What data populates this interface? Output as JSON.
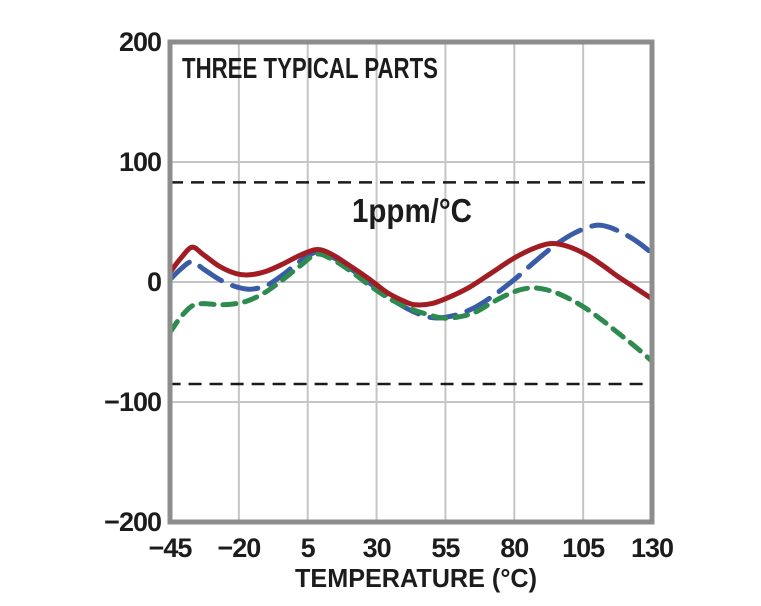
{
  "chart_data": {
    "type": "line",
    "title": "THREE TYPICAL PARTS",
    "xlabel": "TEMPERATURE (°C)",
    "ylabel": "",
    "xlim": [
      -45,
      130
    ],
    "ylim": [
      -200,
      200
    ],
    "grid": true,
    "legend": "none",
    "x_ticks": [
      -45,
      -20,
      5,
      30,
      55,
      80,
      105,
      130
    ],
    "x_tick_labels": [
      "−45",
      "−20",
      "5",
      "30",
      "55",
      "80",
      "105",
      "130"
    ],
    "y_ticks": [
      200,
      100,
      0,
      -100,
      -200
    ],
    "y_tick_labels": [
      "200",
      "100",
      "0",
      "−100",
      "−200"
    ],
    "x_gridlines": [
      -20,
      5,
      30,
      55,
      80,
      105
    ],
    "y_gridlines": [
      100,
      0,
      -100
    ],
    "annotation_box": {
      "label": "1ppm/°C",
      "x_range": [
        -45,
        130
      ],
      "y_top": 83,
      "y_bottom": -85,
      "style": "black-dashed"
    },
    "series": [
      {
        "name": "typical-part-blue",
        "color": "#3a5ba8",
        "style": "long-dash",
        "points": [
          [
            -45,
            2
          ],
          [
            -41,
            11
          ],
          [
            -37,
            17
          ],
          [
            -33,
            11
          ],
          [
            -27,
            2
          ],
          [
            -21,
            -4
          ],
          [
            -16,
            -6
          ],
          [
            -10,
            -3
          ],
          [
            -4,
            6
          ],
          [
            2,
            17
          ],
          [
            8,
            25
          ],
          [
            13,
            22
          ],
          [
            20,
            12
          ],
          [
            27,
            0
          ],
          [
            34,
            -12
          ],
          [
            41,
            -22
          ],
          [
            47,
            -28
          ],
          [
            52,
            -30
          ],
          [
            58,
            -28
          ],
          [
            65,
            -22
          ],
          [
            72,
            -12
          ],
          [
            80,
            2
          ],
          [
            88,
            18
          ],
          [
            95,
            31
          ],
          [
            102,
            41
          ],
          [
            109,
            47
          ],
          [
            114,
            46
          ],
          [
            120,
            40
          ],
          [
            125,
            33
          ],
          [
            130,
            24
          ]
        ]
      },
      {
        "name": "typical-part-green",
        "color": "#2e8b4f",
        "style": "short-dash",
        "points": [
          [
            -45,
            -42
          ],
          [
            -41,
            -29
          ],
          [
            -37,
            -20
          ],
          [
            -33,
            -18
          ],
          [
            -27,
            -19
          ],
          [
            -21,
            -18
          ],
          [
            -16,
            -15
          ],
          [
            -10,
            -8
          ],
          [
            -4,
            2
          ],
          [
            2,
            13
          ],
          [
            8,
            23
          ],
          [
            13,
            20
          ],
          [
            20,
            10
          ],
          [
            27,
            -2
          ],
          [
            34,
            -13
          ],
          [
            41,
            -21
          ],
          [
            47,
            -26
          ],
          [
            54,
            -30
          ],
          [
            60,
            -29
          ],
          [
            66,
            -25
          ],
          [
            72,
            -17
          ],
          [
            78,
            -10
          ],
          [
            83,
            -6
          ],
          [
            88,
            -5
          ],
          [
            94,
            -8
          ],
          [
            100,
            -14
          ],
          [
            106,
            -22
          ],
          [
            112,
            -32
          ],
          [
            118,
            -43
          ],
          [
            124,
            -54
          ],
          [
            130,
            -66
          ]
        ]
      },
      {
        "name": "typical-part-red",
        "color": "#a11d23",
        "style": "solid",
        "points": [
          [
            -45,
            8
          ],
          [
            -41,
            20
          ],
          [
            -37,
            29
          ],
          [
            -33,
            23
          ],
          [
            -27,
            13
          ],
          [
            -21,
            7
          ],
          [
            -16,
            6
          ],
          [
            -10,
            9
          ],
          [
            -4,
            15
          ],
          [
            2,
            22
          ],
          [
            8,
            27
          ],
          [
            13,
            24
          ],
          [
            20,
            14
          ],
          [
            27,
            3
          ],
          [
            34,
            -9
          ],
          [
            40,
            -16
          ],
          [
            44,
            -19
          ],
          [
            50,
            -18
          ],
          [
            57,
            -12
          ],
          [
            64,
            -4
          ],
          [
            72,
            8
          ],
          [
            80,
            20
          ],
          [
            87,
            28
          ],
          [
            93,
            32
          ],
          [
            99,
            30
          ],
          [
            106,
            23
          ],
          [
            112,
            14
          ],
          [
            118,
            4
          ],
          [
            124,
            -5
          ],
          [
            130,
            -14
          ]
        ]
      }
    ],
    "colors": {
      "grid": "#c5c5c5",
      "frame": "#8d8d8d",
      "annotation_box": "#1a1a1a",
      "text": "#1c1c1c",
      "background": "#ffffff"
    }
  }
}
